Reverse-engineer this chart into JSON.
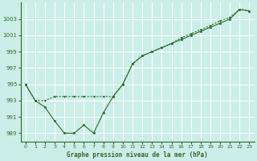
{
  "background_color": "#cceee8",
  "grid_color": "#ffffff",
  "line_color": "#2d6a2d",
  "xlabel": "Graphe pression niveau de la mer (hPa)",
  "xlim": [
    -0.5,
    23.5
  ],
  "ylim": [
    988.0,
    1005.0
  ],
  "yticks": [
    989,
    991,
    993,
    995,
    997,
    999,
    1001,
    1003
  ],
  "xticks": [
    0,
    1,
    2,
    3,
    4,
    5,
    6,
    7,
    8,
    9,
    10,
    11,
    12,
    13,
    14,
    15,
    16,
    17,
    18,
    19,
    20,
    21,
    22,
    23
  ],
  "series1_x": [
    0,
    1,
    2,
    3,
    4,
    5,
    6,
    7,
    8,
    9,
    10,
    11,
    12,
    13,
    14,
    15,
    16,
    17,
    18,
    19,
    20,
    21,
    22,
    23
  ],
  "series1_y": [
    995.0,
    993.0,
    992.2,
    990.5,
    989.0,
    989.0,
    990.0,
    989.0,
    991.5,
    993.5,
    995.0,
    997.5,
    998.5,
    999.0,
    999.5,
    1000.0,
    1000.5,
    1001.0,
    1001.5,
    1002.0,
    1002.5,
    1003.0,
    1004.2,
    1004.0
  ],
  "series2_x": [
    0,
    1,
    2,
    3,
    4,
    5,
    6,
    7,
    8,
    9,
    10,
    11,
    12,
    13,
    14,
    15,
    16,
    17,
    18,
    19,
    20,
    21,
    22,
    23
  ],
  "series2_y": [
    995.0,
    993.0,
    993.0,
    993.5,
    993.5,
    993.5,
    993.5,
    993.5,
    993.5,
    993.5,
    995.0,
    997.5,
    998.5,
    999.0,
    999.5,
    1000.0,
    1000.7,
    1001.2,
    1001.7,
    1002.2,
    1002.8,
    1003.2,
    1004.2,
    1004.0
  ]
}
